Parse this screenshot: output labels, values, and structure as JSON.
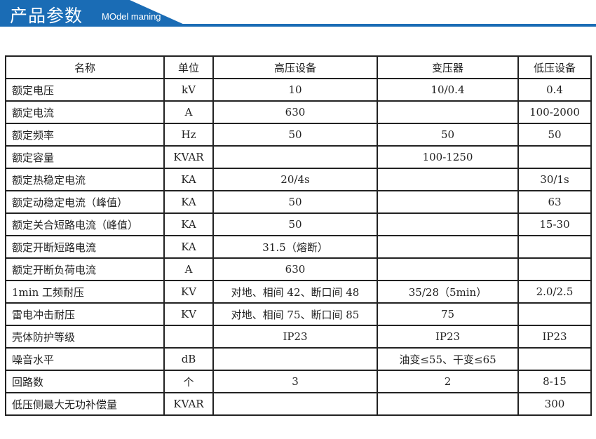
{
  "header": {
    "title": "产品参数",
    "subtitle": "MOdel maning",
    "color": "#1a6cb5"
  },
  "table": {
    "columns": [
      "名称",
      "单位",
      "高压设备",
      "变压器",
      "低压设备"
    ],
    "rows": [
      [
        "额定电压",
        "kV",
        "10",
        "10/0.4",
        "0.4"
      ],
      [
        "额定电流",
        "A",
        "630",
        "",
        "100-2000"
      ],
      [
        "额定频率",
        "Hz",
        "50",
        "50",
        "50"
      ],
      [
        "额定容量",
        "KVAR",
        "",
        "100-1250",
        ""
      ],
      [
        "额定热稳定电流",
        "KA",
        "20/4s",
        "",
        "30/1s"
      ],
      [
        "额定动稳定电流（峰值）",
        "KA",
        "50",
        "",
        "63"
      ],
      [
        "额定关合短路电流（峰值）",
        "KA",
        "50",
        "",
        "15-30"
      ],
      [
        "额定开断短路电流",
        "KA",
        "31.5（熔断）",
        "",
        ""
      ],
      [
        "额定开断负荷电流",
        "A",
        "630",
        "",
        ""
      ],
      [
        "1min 工频耐压",
        "KV",
        "对地、相间 42、断口间 48",
        "35/28（5min）",
        "2.0/2.5"
      ],
      [
        "雷电冲击耐压",
        "KV",
        "对地、相间 75、断口间 85",
        "75",
        ""
      ],
      [
        "壳体防护等级",
        "",
        "IP23",
        "IP23",
        "IP23"
      ],
      [
        "噪音水平",
        "dB",
        "",
        "油变≤55、干变≤65",
        ""
      ],
      [
        "回路数",
        "个",
        "3",
        "2",
        "8-15"
      ],
      [
        "低压侧最大无功补偿量",
        "KVAR",
        "",
        "",
        "300"
      ]
    ]
  }
}
